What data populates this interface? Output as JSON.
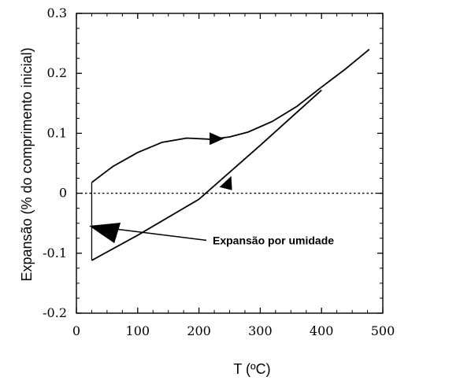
{
  "chart_data": {
    "type": "line",
    "title": "",
    "xlabel": "T (ºC)",
    "ylabel": "Expansão (% do comprimento inicial)",
    "xlim": [
      0,
      500
    ],
    "ylim": [
      -0.2,
      0.3
    ],
    "xticks": [
      0,
      100,
      200,
      300,
      400,
      500
    ],
    "xtick_labels": [
      "0",
      "100",
      "200",
      "300",
      "400",
      "500"
    ],
    "yticks": [
      -0.2,
      -0.1,
      0,
      0.1,
      0.2,
      0.3
    ],
    "ytick_labels": [
      "-0.2",
      "-0.1",
      "0",
      "0.1",
      "0.2",
      "0.3"
    ],
    "grid": false,
    "series": [
      {
        "x": [
          25,
          60,
          100,
          140,
          180,
          200,
          220,
          250,
          280,
          320,
          360,
          400,
          440,
          478
        ],
        "y": [
          0.018,
          0.045,
          0.068,
          0.085,
          0.092,
          0.091,
          0.09,
          0.094,
          0.102,
          0.12,
          0.145,
          0.177,
          0.208,
          0.24
        ]
      },
      {
        "x": [
          25,
          100,
          200,
          300,
          400
        ],
        "y": [
          -0.112,
          -0.07,
          -0.01,
          0.08,
          0.172
        ]
      }
    ],
    "reference_line": {
      "y": 0,
      "style": "dotted"
    },
    "step_line": {
      "x": 25,
      "from": 0.018,
      "to": -0.112
    },
    "arrows": [
      {
        "x": 225,
        "y": 0.091,
        "direction": "right"
      },
      {
        "x": 245,
        "y": 0.013,
        "direction": "up-right"
      }
    ],
    "annotations": [
      {
        "text": "Expansão por umidade",
        "x": 40,
        "y": -0.057
      }
    ]
  }
}
